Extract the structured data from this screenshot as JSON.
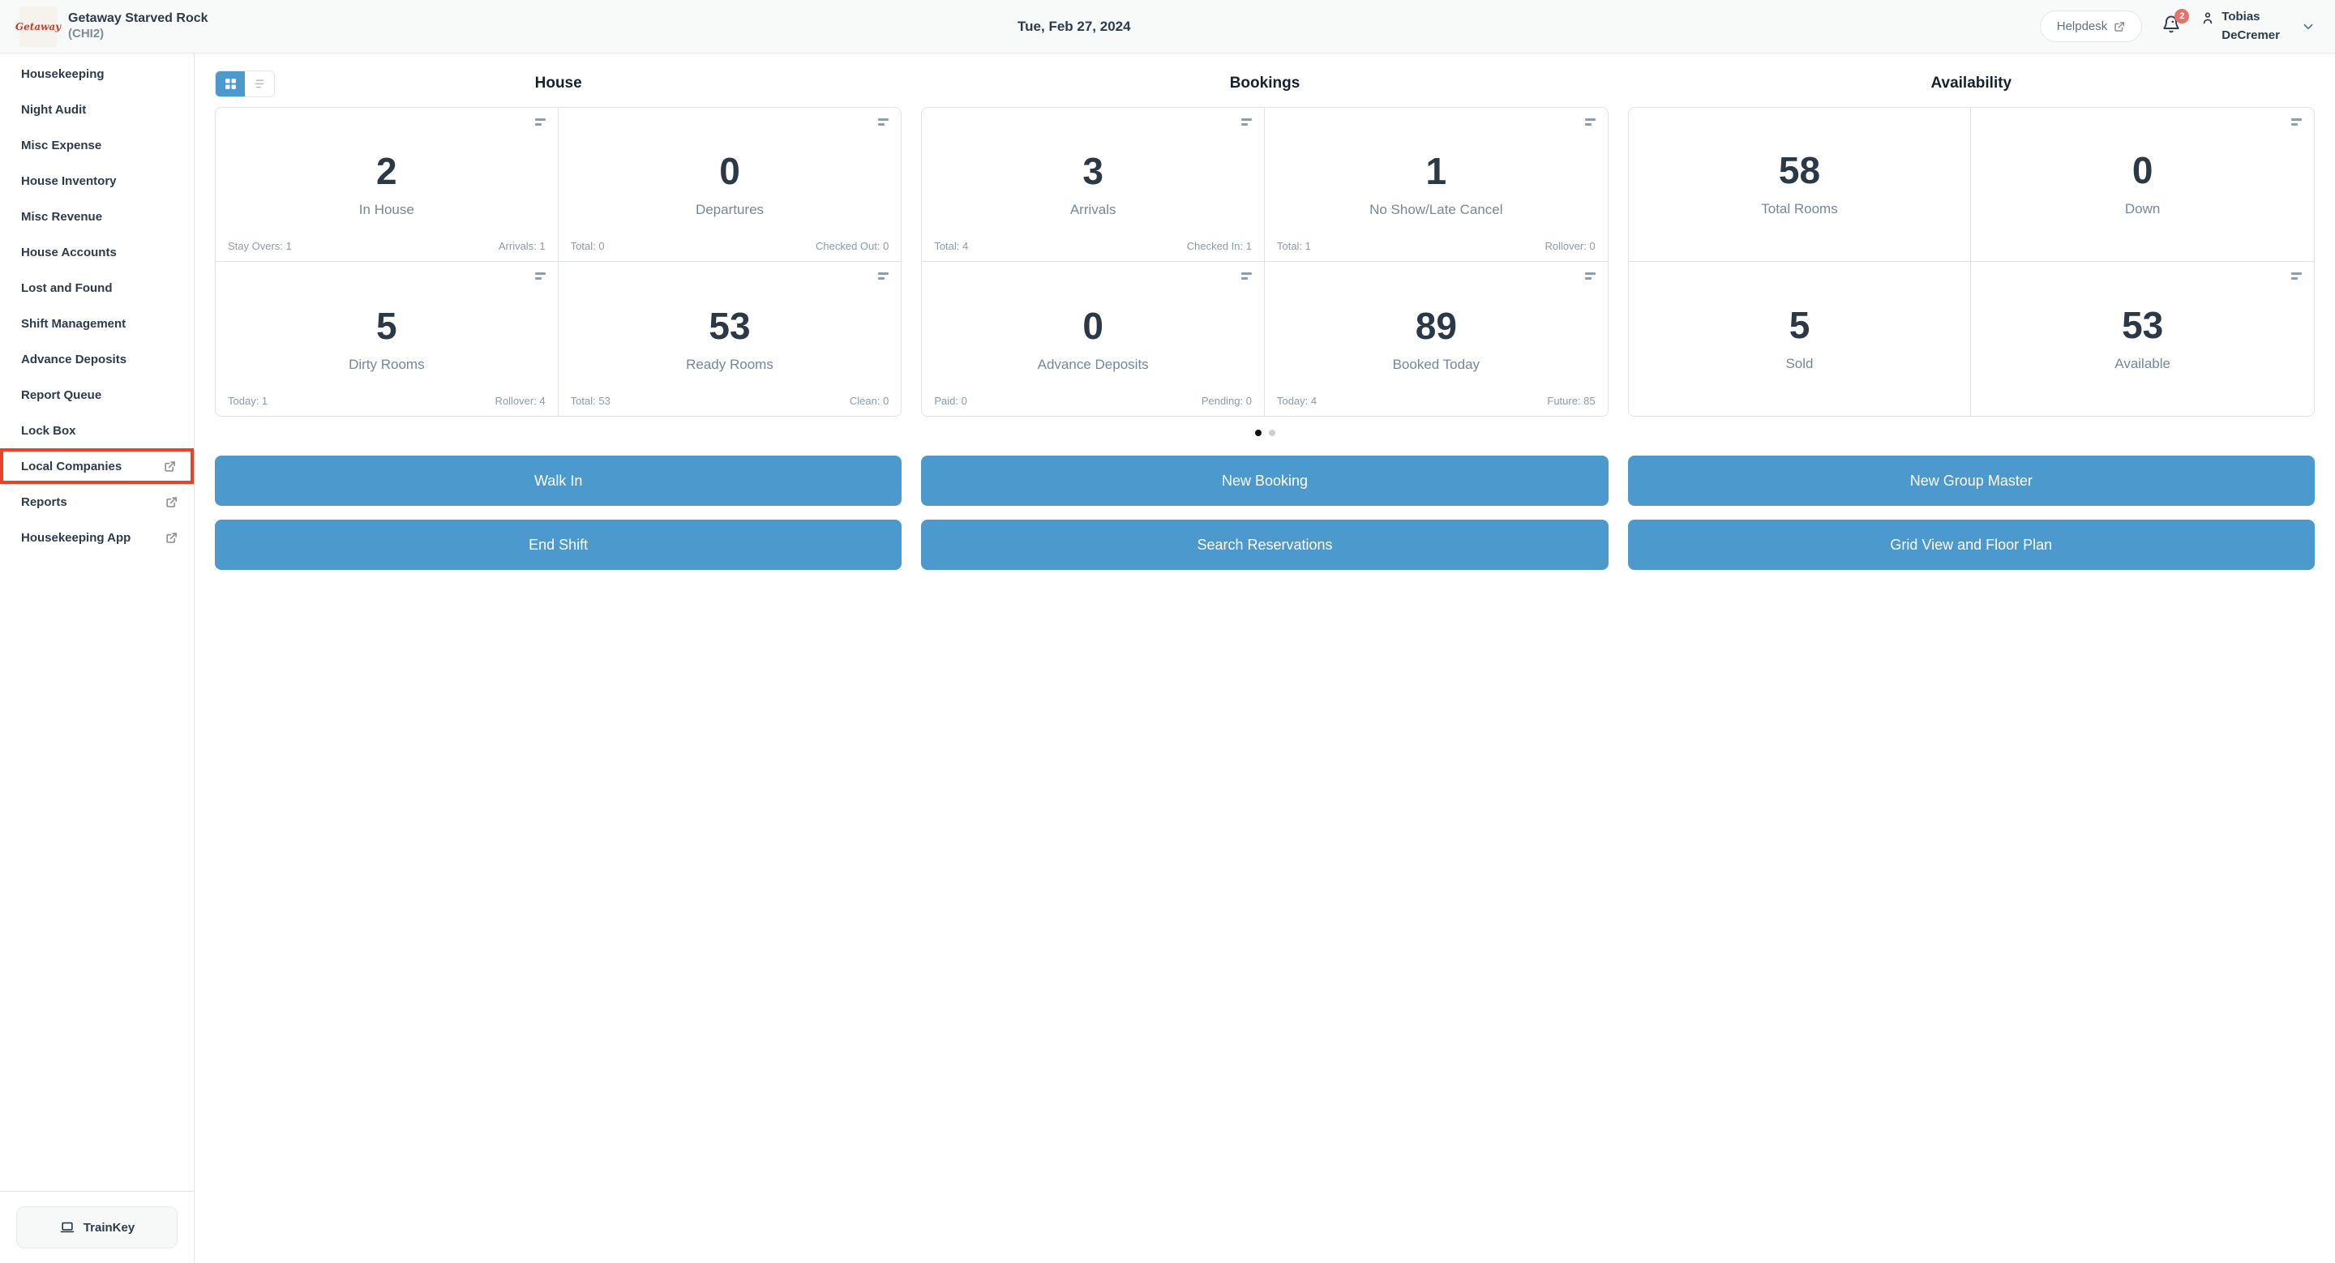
{
  "header": {
    "logo_text": "Getaway",
    "property_name": "Getaway Starved Rock",
    "property_code": "(CHI2)",
    "date": "Tue, Feb 27, 2024",
    "helpdesk_label": "Helpdesk",
    "notification_count": "2",
    "user_name_line1": "Tobias",
    "user_name_line2": "DeCremer"
  },
  "sidebar": {
    "items": [
      {
        "label": "Housekeeping",
        "external": false,
        "highlighted": false
      },
      {
        "label": "Night Audit",
        "external": false,
        "highlighted": false
      },
      {
        "label": "Misc Expense",
        "external": false,
        "highlighted": false
      },
      {
        "label": "House Inventory",
        "external": false,
        "highlighted": false
      },
      {
        "label": "Misc Revenue",
        "external": false,
        "highlighted": false
      },
      {
        "label": "House Accounts",
        "external": false,
        "highlighted": false
      },
      {
        "label": "Lost and Found",
        "external": false,
        "highlighted": false
      },
      {
        "label": "Shift Management",
        "external": false,
        "highlighted": false
      },
      {
        "label": "Advance Deposits",
        "external": false,
        "highlighted": false
      },
      {
        "label": "Report Queue",
        "external": false,
        "highlighted": false
      },
      {
        "label": "Lock Box",
        "external": false,
        "highlighted": false
      },
      {
        "label": "Local Companies",
        "external": true,
        "highlighted": true
      },
      {
        "label": "Reports",
        "external": true,
        "highlighted": false
      },
      {
        "label": "Housekeeping App",
        "external": true,
        "highlighted": false
      }
    ],
    "trainkey_label": "TrainKey"
  },
  "dashboard": {
    "sections": [
      {
        "title": "House",
        "cards": [
          {
            "value": "2",
            "label": "In House",
            "icon": true,
            "stats": [
              "Stay Overs: 1",
              "Arrivals: 1"
            ]
          },
          {
            "value": "0",
            "label": "Departures",
            "icon": true,
            "stats": [
              "Total: 0",
              "Checked Out: 0"
            ]
          },
          {
            "value": "5",
            "label": "Dirty Rooms",
            "icon": true,
            "stats": [
              "Today: 1",
              "Rollover: 4"
            ]
          },
          {
            "value": "53",
            "label": "Ready Rooms",
            "icon": true,
            "stats": [
              "Total: 53",
              "Clean: 0"
            ]
          }
        ]
      },
      {
        "title": "Bookings",
        "cards": [
          {
            "value": "3",
            "label": "Arrivals",
            "icon": true,
            "stats": [
              "Total: 4",
              "Checked In: 1"
            ]
          },
          {
            "value": "1",
            "label": "No Show/Late Cancel",
            "icon": true,
            "stats": [
              "Total: 1",
              "Rollover: 0"
            ]
          },
          {
            "value": "0",
            "label": "Advance Deposits",
            "icon": true,
            "stats": [
              "Paid: 0",
              "Pending: 0"
            ]
          },
          {
            "value": "89",
            "label": "Booked Today",
            "icon": true,
            "stats": [
              "Today: 4",
              "Future: 85"
            ]
          }
        ]
      },
      {
        "title": "Availability",
        "cards": [
          {
            "value": "58",
            "label": "Total Rooms",
            "icon": false,
            "stats": []
          },
          {
            "value": "0",
            "label": "Down",
            "icon": true,
            "stats": []
          },
          {
            "value": "5",
            "label": "Sold",
            "icon": false,
            "stats": []
          },
          {
            "value": "53",
            "label": "Available",
            "icon": true,
            "stats": []
          }
        ]
      }
    ],
    "pagination": {
      "count": 2,
      "active": 0
    },
    "actions": [
      "Walk In",
      "New Booking",
      "New Group Master",
      "End Shift",
      "Search Reservations",
      "Grid View and Floor Plan"
    ]
  },
  "colors": {
    "accent_blue": "#4c9acd",
    "highlight_red": "#e8422b",
    "badge_red": "#e4736c",
    "logo_red": "#c2402c",
    "text_dark": "#2d3c4d",
    "text_muted": "#76879a",
    "border": "#dfe3e7"
  }
}
